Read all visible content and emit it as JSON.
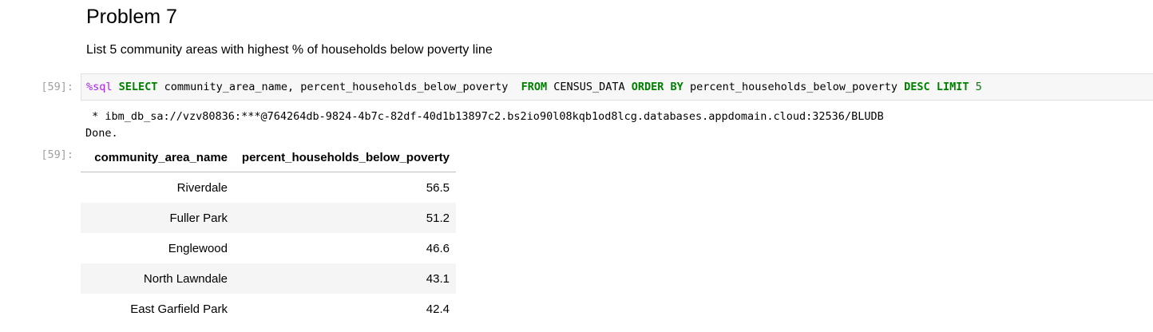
{
  "markdown": {
    "heading": "Problem 7",
    "description": "List 5 community areas with highest % of households below poverty line"
  },
  "cell": {
    "input_prompt": "[59]:",
    "output_prompt": "[59]:",
    "code": {
      "magic": "%sql",
      "select_kw": "SELECT",
      "select_cols": " community_area_name, percent_households_below_poverty  ",
      "from_kw": "FROM",
      "table_name": " CENSUS_DATA ",
      "order_kw": "ORDER BY",
      "order_col": " percent_households_below_poverty ",
      "desc_kw": "DESC",
      "limit_kw": "LIMIT",
      "limit_val": "5"
    },
    "output_lines": [
      " * ibm_db_sa://vzv80836:***@764264db-9824-4b7c-82df-40d1b13897c2.bs2io90l08kqb1od8lcg.databases.appdomain.cloud:32536/BLUDB",
      "Done."
    ],
    "table": {
      "headers": [
        "community_area_name",
        "percent_households_below_poverty"
      ],
      "rows": [
        [
          "Riverdale",
          "56.5"
        ],
        [
          "Fuller Park",
          "51.2"
        ],
        [
          "Englewood",
          "46.6"
        ],
        [
          "North Lawndale",
          "43.1"
        ],
        [
          "East Garfield Park",
          "42.4"
        ]
      ]
    }
  }
}
